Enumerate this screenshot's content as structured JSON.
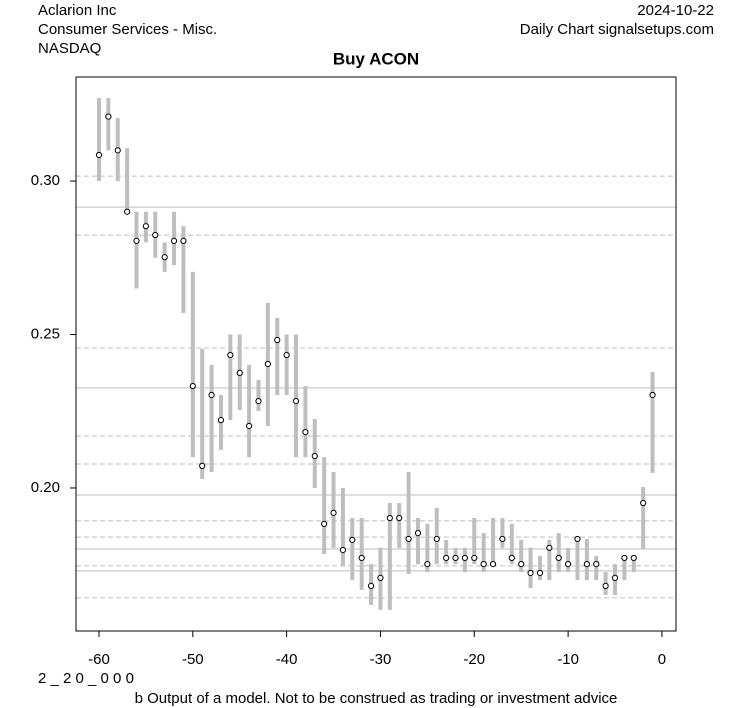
{
  "chart_data": {
    "type": "range",
    "title": "Buy ACON",
    "company": "Aclarion Inc",
    "sector": "Consumer Services - Misc.",
    "exchange": "NASDAQ",
    "date": "2024-10-22",
    "source": "Daily Chart signalsetups.com",
    "code": "2 _ 2 0 _ 0 0 0",
    "disclaimer": "b Output of a model. Not to be construed as trading or investment advice",
    "x": [
      -60,
      -59,
      -58,
      -57,
      -56,
      -55,
      -54,
      -53,
      -52,
      -51,
      -50,
      -49,
      -48,
      -47,
      -46,
      -45,
      -44,
      -43,
      -42,
      -41,
      -40,
      -39,
      -38,
      -37,
      -36,
      -35,
      -34,
      -33,
      -32,
      -31,
      -30,
      -29,
      -28,
      -27,
      -26,
      -25,
      -24,
      -23,
      -22,
      -21,
      -20,
      -19,
      -18,
      -17,
      -16,
      -15,
      -14,
      -13,
      -12,
      -11,
      -10,
      -9,
      -8,
      -7,
      -6,
      -5,
      -4,
      -3,
      -2,
      -1
    ],
    "close": [
      0.3085,
      0.321,
      0.31,
      0.29,
      0.2805,
      0.2853,
      0.2824,
      0.2752,
      0.2805,
      0.2805,
      0.2332,
      0.2072,
      0.2303,
      0.2221,
      0.2433,
      0.2375,
      0.2202,
      0.2283,
      0.2404,
      0.2482,
      0.2433,
      0.2283,
      0.2182,
      0.2104,
      0.1883,
      0.1919,
      0.1798,
      0.1831,
      0.1772,
      0.1681,
      0.1707,
      0.1902,
      0.1902,
      0.1834,
      0.1853,
      0.1752,
      0.1834,
      0.1772,
      0.1772,
      0.1772,
      0.1772,
      0.1752,
      0.1752,
      0.1834,
      0.1772,
      0.1752,
      0.1723,
      0.1723,
      0.1805,
      0.1772,
      0.1752,
      0.1834,
      0.1752,
      0.1752,
      0.1681,
      0.1707,
      0.1772,
      0.1772,
      0.1951,
      0.2303
    ],
    "high": [
      0.327,
      0.327,
      0.3205,
      0.3107,
      0.29,
      0.29,
      0.29,
      0.28,
      0.29,
      0.2853,
      0.2704,
      0.2453,
      0.2401,
      0.2303,
      0.25,
      0.25,
      0.2401,
      0.2352,
      0.2603,
      0.2554,
      0.25,
      0.25,
      0.2332,
      0.2225,
      0.21,
      0.2052,
      0.2,
      0.1902,
      0.1902,
      0.1752,
      0.1805,
      0.1951,
      0.1951,
      0.2052,
      0.1902,
      0.1883,
      0.1935,
      0.1831,
      0.1805,
      0.1805,
      0.1902,
      0.1853,
      0.1902,
      0.1902,
      0.1883,
      0.1831,
      0.1805,
      0.1779,
      0.1831,
      0.1853,
      0.1805,
      0.1834,
      0.1834,
      0.1779,
      0.1726,
      0.1752,
      0.1779,
      0.1779,
      0.2003,
      0.2378
    ],
    "low": [
      0.3,
      0.31,
      0.3,
      0.29,
      0.265,
      0.28,
      0.275,
      0.2704,
      0.2726,
      0.257,
      0.21,
      0.2029,
      0.2052,
      0.2124,
      0.2221,
      0.2254,
      0.21,
      0.2251,
      0.2202,
      0.2303,
      0.2303,
      0.21,
      0.21,
      0.2,
      0.1785,
      0.1805,
      0.1746,
      0.17,
      0.1668,
      0.1619,
      0.1603,
      0.1603,
      0.1805,
      0.172,
      0.1752,
      0.1726,
      0.1752,
      0.1752,
      0.1752,
      0.1726,
      0.1752,
      0.1726,
      0.1752,
      0.1805,
      0.1752,
      0.1726,
      0.1674,
      0.17,
      0.17,
      0.1726,
      0.1726,
      0.17,
      0.17,
      0.17,
      0.1651,
      0.1651,
      0.17,
      0.1726,
      0.1801,
      0.2049
    ],
    "bar_color": "#bebebe",
    "levels": [
      {
        "value": 0.3016,
        "style": "dashed"
      },
      {
        "value": 0.2915,
        "style": "solid"
      },
      {
        "value": 0.2824,
        "style": "dashed"
      },
      {
        "value": 0.2456,
        "style": "dashed"
      },
      {
        "value": 0.2326,
        "style": "solid"
      },
      {
        "value": 0.2169,
        "style": "dashed"
      },
      {
        "value": 0.2078,
        "style": "dashed"
      },
      {
        "value": 0.1977,
        "style": "solid"
      },
      {
        "value": 0.1893,
        "style": "dashed"
      },
      {
        "value": 0.184,
        "style": "dashed"
      },
      {
        "value": 0.1801,
        "style": "solid"
      },
      {
        "value": 0.1746,
        "style": "dashed"
      },
      {
        "value": 0.173,
        "style": "solid"
      },
      {
        "value": 0.1642,
        "style": "dashed"
      }
    ],
    "xlim": [
      -62.45,
      1.5
    ],
    "ylim": [
      0.1534,
      0.3339
    ],
    "xticks": [
      -60,
      -50,
      -40,
      -30,
      -20,
      -10,
      0
    ],
    "yticks": [
      {
        "value": 0.2,
        "label": "0.20"
      },
      0.25,
      {
        "value": 0.3,
        "label": "0.30"
      }
    ]
  }
}
